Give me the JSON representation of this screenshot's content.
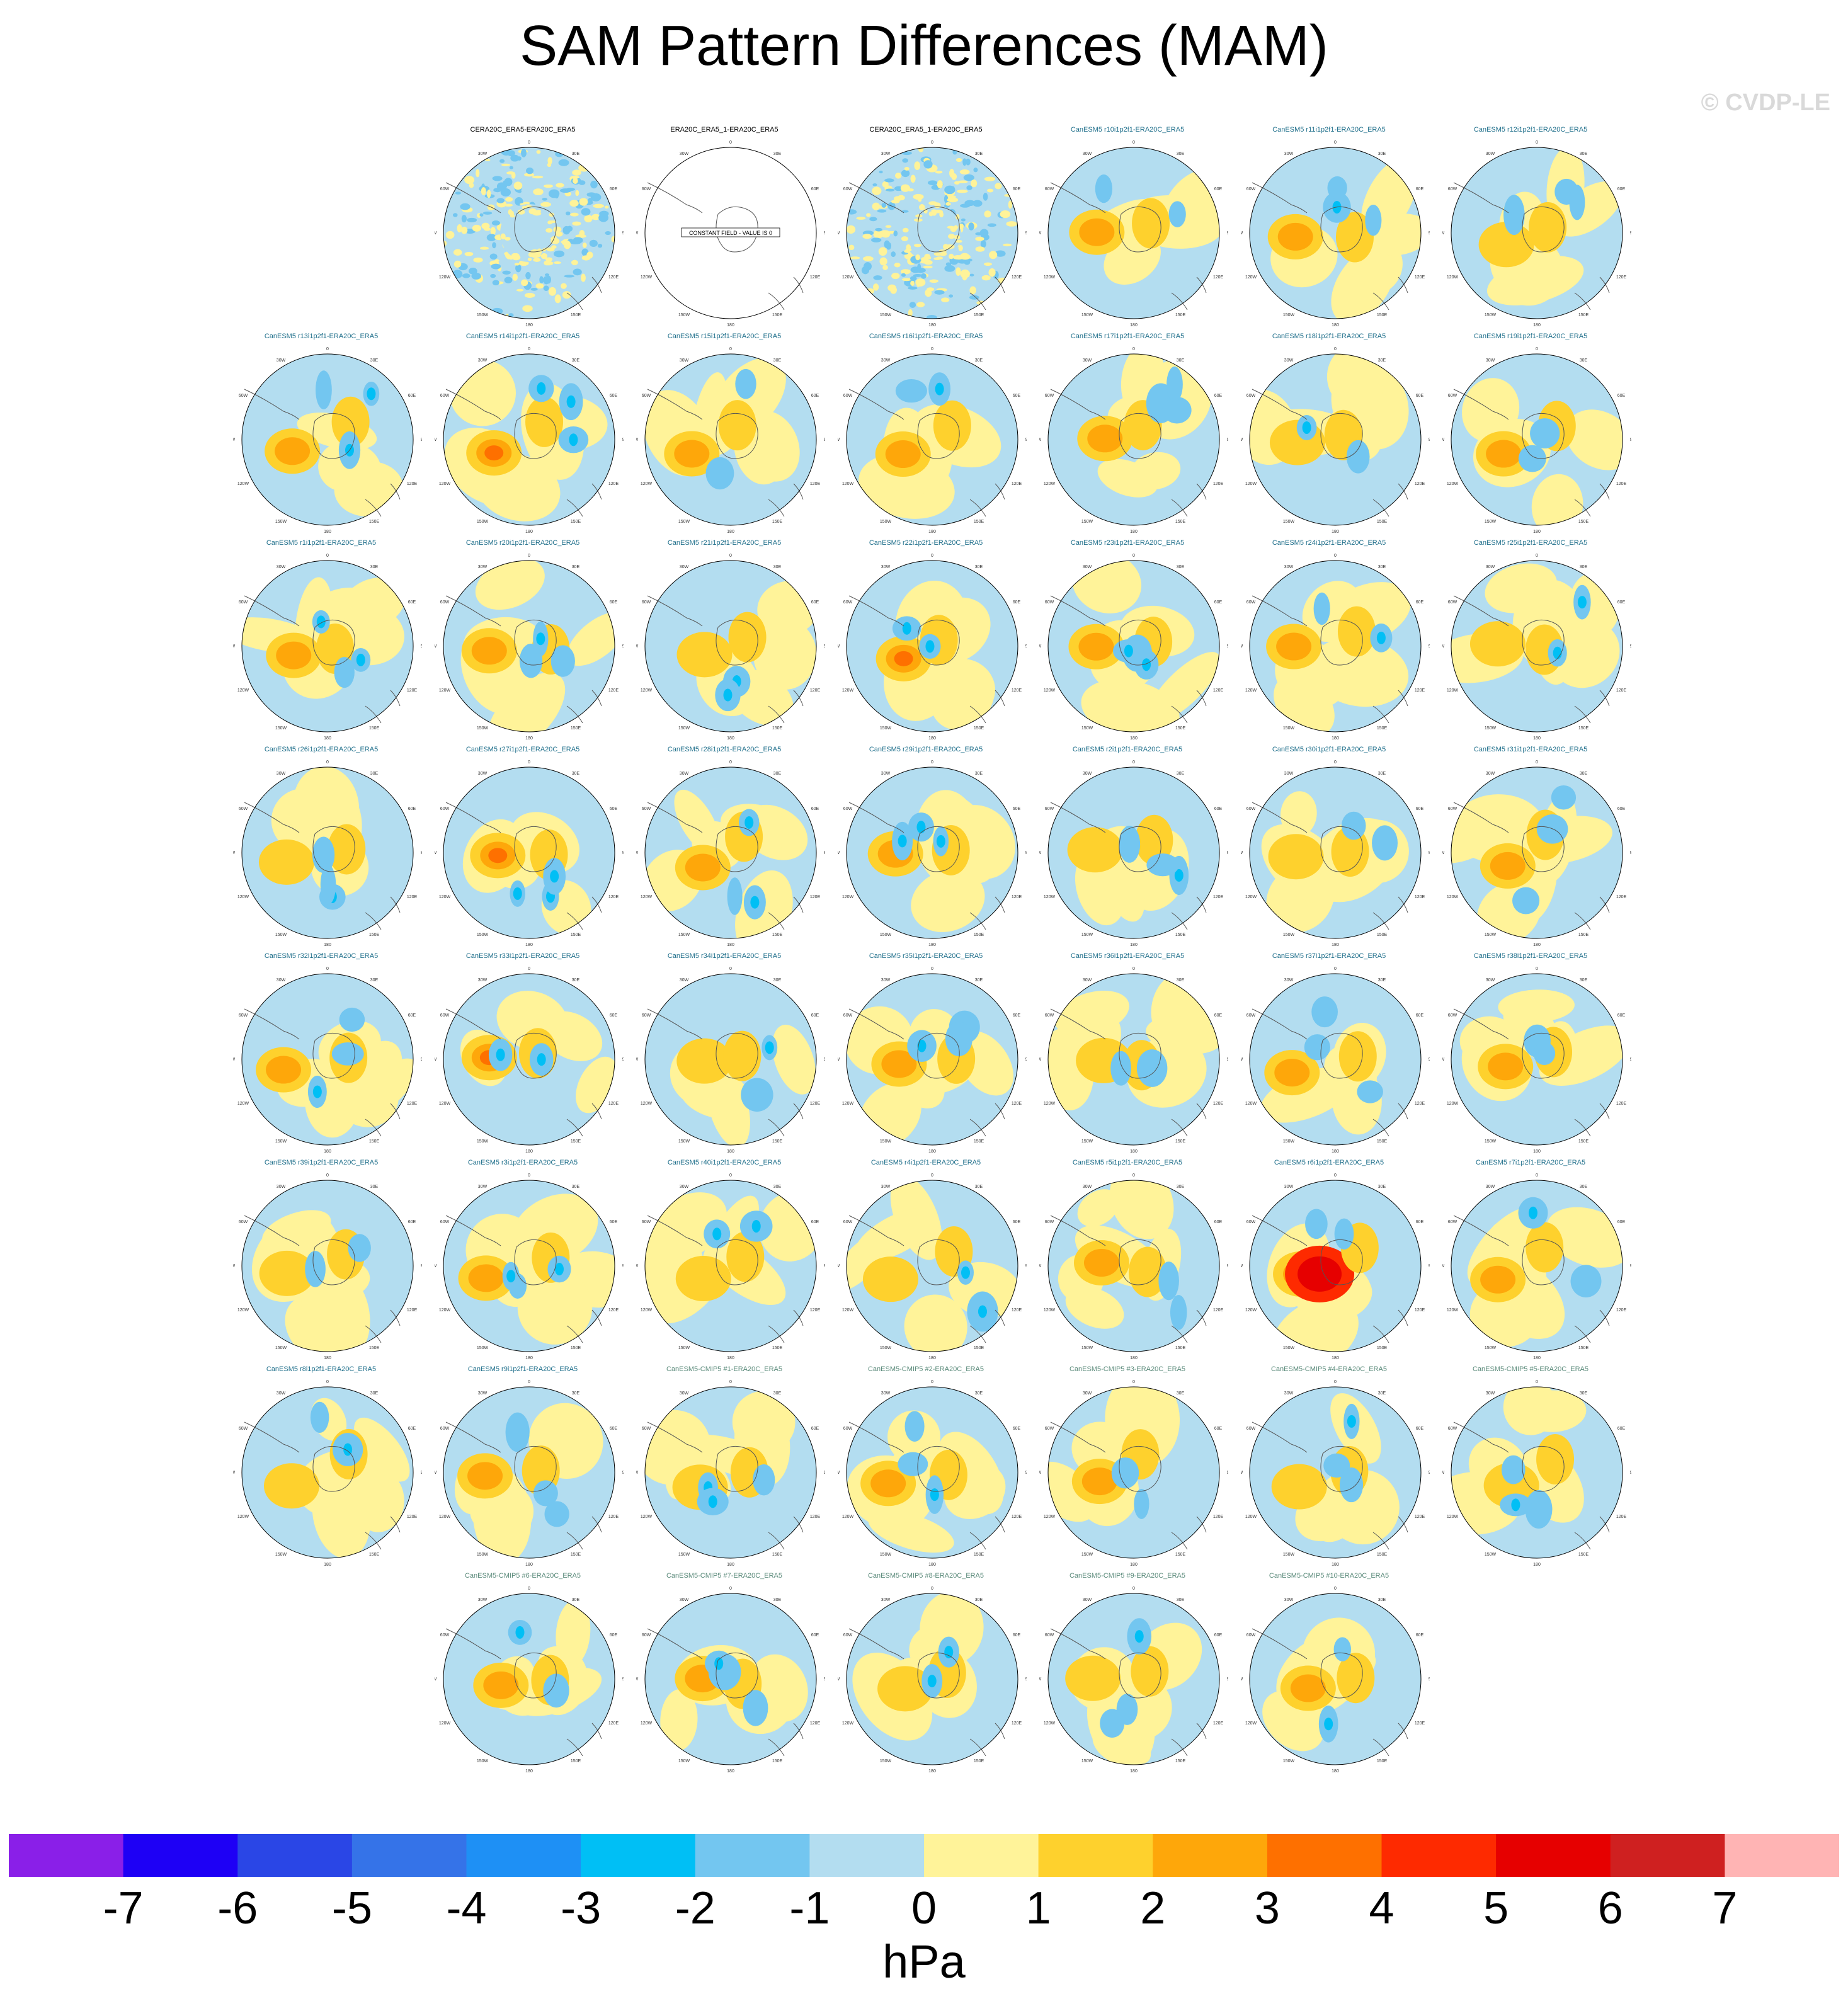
{
  "title": "SAM Pattern Differences (MAM)",
  "watermark": "© CVDP-LE",
  "chart_data": {
    "type": "heatmap",
    "description_type": "polar stereographic map panels (Southern Hemisphere)",
    "panels": [
      "CERA20C_ERA5-ERA20C_ERA5",
      "ERA20C_ERA5_1-ERA20C_ERA5",
      "CERA20C_ERA5_1-ERA20C_ERA5",
      "CanESM5 r10i1p2f1-ERA20C_ERA5",
      "CanESM5 r11i1p2f1-ERA20C_ERA5",
      "CanESM5 r12i1p2f1-ERA20C_ERA5",
      "CanESM5 r13i1p2f1-ERA20C_ERA5",
      "CanESM5 r14i1p2f1-ERA20C_ERA5",
      "CanESM5 r15i1p2f1-ERA20C_ERA5",
      "CanESM5 r16i1p2f1-ERA20C_ERA5",
      "CanESM5 r17i1p2f1-ERA20C_ERA5",
      "CanESM5 r18i1p2f1-ERA20C_ERA5",
      "CanESM5 r19i1p2f1-ERA20C_ERA5",
      "CanESM5 r1i1p2f1-ERA20C_ERA5",
      "CanESM5 r20i1p2f1-ERA20C_ERA5",
      "CanESM5 r21i1p2f1-ERA20C_ERA5",
      "CanESM5 r22i1p2f1-ERA20C_ERA5",
      "CanESM5 r23i1p2f1-ERA20C_ERA5",
      "CanESM5 r24i1p2f1-ERA20C_ERA5",
      "CanESM5 r25i1p2f1-ERA20C_ERA5",
      "CanESM5 r26i1p2f1-ERA20C_ERA5",
      "CanESM5 r27i1p2f1-ERA20C_ERA5",
      "CanESM5 r28i1p2f1-ERA20C_ERA5",
      "CanESM5 r29i1p2f1-ERA20C_ERA5",
      "CanESM5 r2i1p2f1-ERA20C_ERA5",
      "CanESM5 r30i1p2f1-ERA20C_ERA5",
      "CanESM5 r31i1p2f1-ERA20C_ERA5",
      "CanESM5 r32i1p2f1-ERA20C_ERA5",
      "CanESM5 r33i1p2f1-ERA20C_ERA5",
      "CanESM5 r34i1p2f1-ERA20C_ERA5",
      "CanESM5 r35i1p2f1-ERA20C_ERA5",
      "CanESM5 r36i1p2f1-ERA20C_ERA5",
      "CanESM5 r37i1p2f1-ERA20C_ERA5",
      "CanESM5 r38i1p2f1-ERA20C_ERA5",
      "CanESM5 r39i1p2f1-ERA20C_ERA5",
      "CanESM5 r3i1p2f1-ERA20C_ERA5",
      "CanESM5 r40i1p2f1-ERA20C_ERA5",
      "CanESM5 r4i1p2f1-ERA20C_ERA5",
      "CanESM5 r5i1p2f1-ERA20C_ERA5",
      "CanESM5 r6i1p2f1-ERA20C_ERA5",
      "CanESM5 r7i1p2f1-ERA20C_ERA5",
      "CanESM5 r8i1p2f1-ERA20C_ERA5",
      "CanESM5 r9i1p2f1-ERA20C_ERA5",
      "CanESM5-CMIP5 #1-ERA20C_ERA5",
      "CanESM5-CMIP5 #2-ERA20C_ERA5",
      "CanESM5-CMIP5 #3-ERA20C_ERA5",
      "CanESM5-CMIP5 #4-ERA20C_ERA5",
      "CanESM5-CMIP5 #5-ERA20C_ERA5",
      "CanESM5-CMIP5 #6-ERA20C_ERA5",
      "CanESM5-CMIP5 #7-ERA20C_ERA5",
      "CanESM5-CMIP5 #8-ERA20C_ERA5",
      "CanESM5-CMIP5 #9-ERA20C_ERA5",
      "CanESM5-CMIP5 #10-ERA20C_ERA5"
    ],
    "panel_label_colors": {
      "reference": "#000000",
      "canesm5": "#1f6f8b",
      "cmip5": "#5a8a7a"
    },
    "constant_field_text": "CONSTANT FIELD - VALUE IS 0",
    "map_labels": {
      "lon_top": "0",
      "lon_bottom": "180",
      "lon_left": "90W",
      "lon_right": "90E",
      "lon_tl": "30W",
      "lon_tr": "30E",
      "lon_ul": "60W",
      "lon_ur": "60E",
      "lon_ll": "120W",
      "lon_lr": "120E",
      "lon_bl": "150W",
      "lon_br": "150E"
    },
    "colorbar": {
      "units": "hPa",
      "tick_labels": [
        "-7",
        "-6",
        "-5",
        "-4",
        "-3",
        "-2",
        "-1",
        "0",
        "1",
        "2",
        "3",
        "4",
        "5",
        "6",
        "7"
      ],
      "colors": [
        "#8a1fe8",
        "#1e00f5",
        "#2a46e6",
        "#3573e8",
        "#1e90f5",
        "#00bff5",
        "#73c6f0",
        "#b3ddf0",
        "#fff399",
        "#fed12d",
        "#fea70a",
        "#fe7000",
        "#fe2a00",
        "#e60000",
        "#cf2020",
        "#ffb4b4"
      ]
    }
  }
}
